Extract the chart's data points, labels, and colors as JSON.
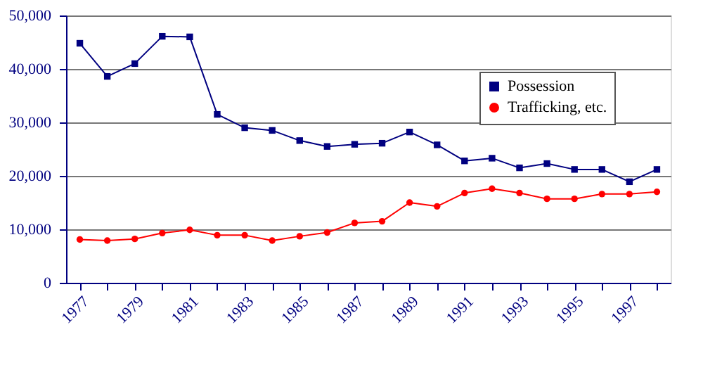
{
  "chart_data": {
    "type": "line",
    "categories": [
      "1977",
      null,
      "1979",
      null,
      "1981",
      null,
      "1983",
      null,
      "1985",
      null,
      "1987",
      null,
      "1989",
      null,
      "1991",
      null,
      "1993",
      null,
      "1995",
      null,
      "1997",
      null
    ],
    "series": [
      {
        "name": "Possession",
        "color": "#000080",
        "marker": "square",
        "values": [
          44800,
          38600,
          41000,
          46100,
          46000,
          31500,
          29000,
          28500,
          26600,
          25500,
          25900,
          26100,
          28200,
          25800,
          22800,
          23300,
          21500,
          22300,
          21200,
          21200,
          18900,
          21200
        ]
      },
      {
        "name": "Trafficking, etc.",
        "color": "#ff0000",
        "marker": "circle",
        "values": [
          8100,
          7900,
          8200,
          9300,
          9900,
          8900,
          8900,
          7900,
          8700,
          9400,
          11200,
          11500,
          15000,
          14300,
          16800,
          17600,
          16800,
          15700,
          15700,
          16600,
          16600,
          17000
        ]
      }
    ],
    "ylim": [
      0,
      50000
    ],
    "yticks": [
      {
        "value": 0,
        "label": "0"
      },
      {
        "value": 10000,
        "label": "10,000"
      },
      {
        "value": 20000,
        "label": "20,000"
      },
      {
        "value": 30000,
        "label": "30,000"
      },
      {
        "value": 40000,
        "label": "40,000"
      },
      {
        "value": 50000,
        "label": "50,000"
      }
    ],
    "grid": "y",
    "legend": "top right",
    "line_style": "solid"
  }
}
